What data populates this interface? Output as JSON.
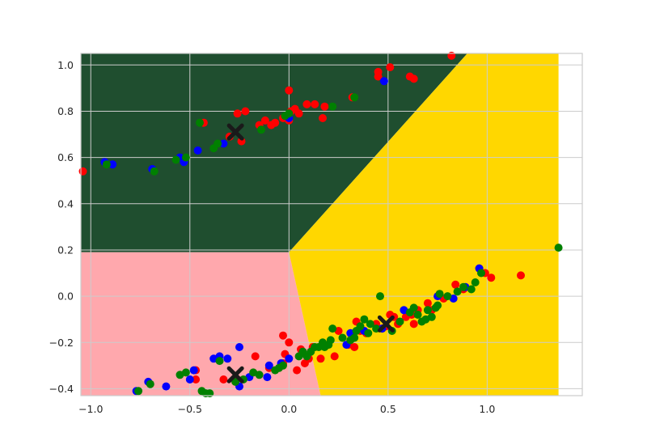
{
  "chart_data": {
    "type": "scatter",
    "title": "",
    "xlabel": "",
    "ylabel": "",
    "xlim": [
      -1.05,
      1.48
    ],
    "ylim": [
      -0.43,
      1.05
    ],
    "grid": true,
    "x_ticks": [
      -1.0,
      -0.5,
      0.0,
      0.5,
      1.0
    ],
    "x_tick_labels": [
      "−1.0",
      "−0.5",
      "0.0",
      "0.5",
      "1.0"
    ],
    "y_ticks": [
      -0.4,
      -0.2,
      0.0,
      0.2,
      0.4,
      0.6,
      0.8,
      1.0
    ],
    "y_tick_labels": [
      "−0.4",
      "−0.2",
      "0.0",
      "0.2",
      "0.4",
      "0.6",
      "0.8",
      "1.0"
    ],
    "regions": [
      {
        "color": "#1f4e2f",
        "polygon": [
          [
            -1.05,
            0.19
          ],
          [
            0.0,
            0.19
          ],
          [
            0.9,
            1.05
          ],
          [
            -1.05,
            1.05
          ]
        ]
      },
      {
        "color": "#ffa8ad",
        "polygon": [
          [
            -1.05,
            -0.43
          ],
          [
            0.16,
            -0.43
          ],
          [
            0.0,
            0.19
          ],
          [
            -1.05,
            0.19
          ]
        ]
      },
      {
        "color": "#ffd700",
        "polygon": [
          [
            0.16,
            -0.43
          ],
          [
            1.36,
            -0.43
          ],
          [
            1.36,
            1.05
          ],
          [
            0.9,
            1.05
          ],
          [
            0.0,
            0.19
          ]
        ]
      }
    ],
    "series": [
      {
        "color": "#ff0000",
        "points": [
          [
            -1.04,
            0.54
          ],
          [
            -0.43,
            0.75
          ],
          [
            -0.3,
            0.69
          ],
          [
            -0.24,
            0.67
          ],
          [
            -0.22,
            0.8
          ],
          [
            -0.26,
            0.79
          ],
          [
            -0.15,
            0.74
          ],
          [
            -0.12,
            0.76
          ],
          [
            -0.09,
            0.74
          ],
          [
            -0.07,
            0.75
          ],
          [
            -0.03,
            0.77
          ],
          [
            0.0,
            0.76
          ],
          [
            0.01,
            0.8
          ],
          [
            0.03,
            0.81
          ],
          [
            0.05,
            0.79
          ],
          [
            0.09,
            0.83
          ],
          [
            0.13,
            0.83
          ],
          [
            0.18,
            0.82
          ],
          [
            0.17,
            0.77
          ],
          [
            0.0,
            0.89
          ],
          [
            0.32,
            0.86
          ],
          [
            0.45,
            0.95
          ],
          [
            0.45,
            0.97
          ],
          [
            0.51,
            0.99
          ],
          [
            0.61,
            0.95
          ],
          [
            0.63,
            0.94
          ],
          [
            0.82,
            1.04
          ],
          [
            -0.47,
            -0.32
          ],
          [
            -0.47,
            -0.36
          ],
          [
            -0.33,
            -0.36
          ],
          [
            -0.17,
            -0.26
          ],
          [
            -0.1,
            -0.31
          ],
          [
            -0.03,
            -0.29
          ],
          [
            -0.02,
            -0.25
          ],
          [
            -0.03,
            -0.17
          ],
          [
            0.0,
            -0.2
          ],
          [
            0.04,
            -0.32
          ],
          [
            0.06,
            -0.23
          ],
          [
            0.08,
            -0.29
          ],
          [
            0.1,
            -0.27
          ],
          [
            0.12,
            -0.22
          ],
          [
            0.16,
            -0.27
          ],
          [
            0.23,
            -0.26
          ],
          [
            0.25,
            -0.15
          ],
          [
            0.3,
            -0.21
          ],
          [
            0.33,
            -0.22
          ],
          [
            0.34,
            -0.11
          ],
          [
            0.36,
            -0.15
          ],
          [
            0.39,
            -0.16
          ],
          [
            0.44,
            -0.12
          ],
          [
            0.47,
            -0.14
          ],
          [
            0.49,
            -0.13
          ],
          [
            0.51,
            -0.08
          ],
          [
            0.53,
            -0.09
          ],
          [
            0.55,
            -0.12
          ],
          [
            0.59,
            -0.09
          ],
          [
            0.62,
            -0.08
          ],
          [
            0.63,
            -0.12
          ],
          [
            0.65,
            -0.06
          ],
          [
            0.7,
            -0.03
          ],
          [
            0.72,
            -0.06
          ],
          [
            0.78,
            -0.01
          ],
          [
            0.84,
            0.05
          ],
          [
            0.88,
            0.03
          ],
          [
            0.96,
            0.12
          ],
          [
            0.99,
            0.1
          ],
          [
            1.02,
            0.08
          ],
          [
            1.17,
            0.09
          ]
        ]
      },
      {
        "color": "#0000ff",
        "points": [
          [
            -0.93,
            0.58
          ],
          [
            -0.89,
            0.57
          ],
          [
            -0.69,
            0.55
          ],
          [
            -0.55,
            0.6
          ],
          [
            -0.53,
            0.58
          ],
          [
            -0.46,
            0.63
          ],
          [
            -0.33,
            0.66
          ],
          [
            0.0,
            0.77
          ],
          [
            0.48,
            0.93
          ],
          [
            -0.77,
            -0.41
          ],
          [
            -0.71,
            -0.37
          ],
          [
            -0.62,
            -0.39
          ],
          [
            -0.48,
            -0.32
          ],
          [
            -0.5,
            -0.36
          ],
          [
            -0.38,
            -0.27
          ],
          [
            -0.35,
            -0.26
          ],
          [
            -0.31,
            -0.27
          ],
          [
            -0.25,
            -0.22
          ],
          [
            -0.25,
            -0.39
          ],
          [
            -0.2,
            -0.35
          ],
          [
            -0.11,
            -0.35
          ],
          [
            -0.1,
            -0.3
          ],
          [
            -0.04,
            -0.29
          ],
          [
            0.0,
            -0.27
          ],
          [
            0.29,
            -0.21
          ],
          [
            0.31,
            -0.16
          ],
          [
            0.38,
            -0.15
          ],
          [
            0.47,
            -0.14
          ],
          [
            0.58,
            -0.06
          ],
          [
            0.75,
            0.0
          ],
          [
            0.83,
            -0.01
          ],
          [
            0.89,
            0.04
          ],
          [
            0.96,
            0.12
          ]
        ]
      },
      {
        "color": "#008000",
        "points": [
          [
            -0.92,
            0.57
          ],
          [
            -0.68,
            0.54
          ],
          [
            -0.57,
            0.59
          ],
          [
            -0.52,
            0.6
          ],
          [
            -0.45,
            0.75
          ],
          [
            -0.38,
            0.64
          ],
          [
            -0.36,
            0.66
          ],
          [
            -0.14,
            0.72
          ],
          [
            -0.02,
            0.78
          ],
          [
            0.0,
            0.79
          ],
          [
            0.22,
            0.82
          ],
          [
            0.33,
            0.86
          ],
          [
            -0.76,
            -0.41
          ],
          [
            -0.7,
            -0.38
          ],
          [
            -0.55,
            -0.34
          ],
          [
            -0.52,
            -0.33
          ],
          [
            -0.44,
            -0.41
          ],
          [
            -0.42,
            -0.42
          ],
          [
            -0.4,
            -0.42
          ],
          [
            -0.35,
            -0.28
          ],
          [
            -0.27,
            -0.37
          ],
          [
            -0.23,
            -0.36
          ],
          [
            -0.18,
            -0.33
          ],
          [
            -0.15,
            -0.34
          ],
          [
            -0.07,
            -0.32
          ],
          [
            -0.05,
            -0.31
          ],
          [
            -0.03,
            -0.3
          ],
          [
            0.05,
            -0.26
          ],
          [
            0.07,
            -0.24
          ],
          [
            0.09,
            -0.26
          ],
          [
            0.11,
            -0.24
          ],
          [
            0.13,
            -0.22
          ],
          [
            0.15,
            -0.22
          ],
          [
            0.17,
            -0.2
          ],
          [
            0.18,
            -0.22
          ],
          [
            0.2,
            -0.21
          ],
          [
            0.21,
            -0.19
          ],
          [
            0.22,
            -0.14
          ],
          [
            0.27,
            -0.18
          ],
          [
            0.31,
            -0.19
          ],
          [
            0.33,
            -0.18
          ],
          [
            0.34,
            -0.15
          ],
          [
            0.36,
            -0.13
          ],
          [
            0.38,
            -0.1
          ],
          [
            0.4,
            -0.16
          ],
          [
            0.41,
            -0.12
          ],
          [
            0.44,
            -0.14
          ],
          [
            0.46,
            0.0
          ],
          [
            0.52,
            -0.15
          ],
          [
            0.56,
            -0.11
          ],
          [
            0.61,
            -0.07
          ],
          [
            0.63,
            -0.05
          ],
          [
            0.65,
            -0.08
          ],
          [
            0.67,
            -0.11
          ],
          [
            0.69,
            -0.1
          ],
          [
            0.7,
            -0.06
          ],
          [
            0.72,
            -0.09
          ],
          [
            0.74,
            -0.05
          ],
          [
            0.75,
            -0.04
          ],
          [
            0.76,
            0.01
          ],
          [
            0.8,
            0.0
          ],
          [
            0.85,
            0.02
          ],
          [
            0.88,
            0.04
          ],
          [
            0.92,
            0.03
          ],
          [
            0.94,
            0.06
          ],
          [
            0.97,
            0.1
          ],
          [
            1.36,
            0.21
          ]
        ]
      },
      {
        "color": "#1a1a1a",
        "marker": "x",
        "points": [
          [
            -0.27,
            0.71
          ],
          [
            -0.27,
            -0.34
          ],
          [
            0.49,
            -0.12
          ]
        ]
      }
    ]
  }
}
